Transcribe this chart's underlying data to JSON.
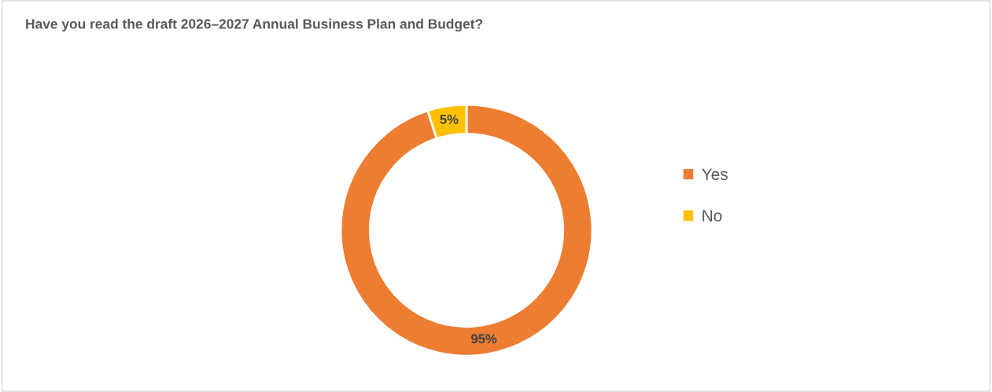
{
  "chart_data": {
    "type": "donut",
    "title": "Have you read the draft 2026–2027 Annual Business Plan and Budget?",
    "categories": [
      "Yes",
      "No"
    ],
    "values": [
      95,
      5
    ],
    "colors": [
      "#ed7d31",
      "#ffc000"
    ],
    "value_labels": [
      "95%",
      "5%"
    ],
    "legend": "right"
  }
}
